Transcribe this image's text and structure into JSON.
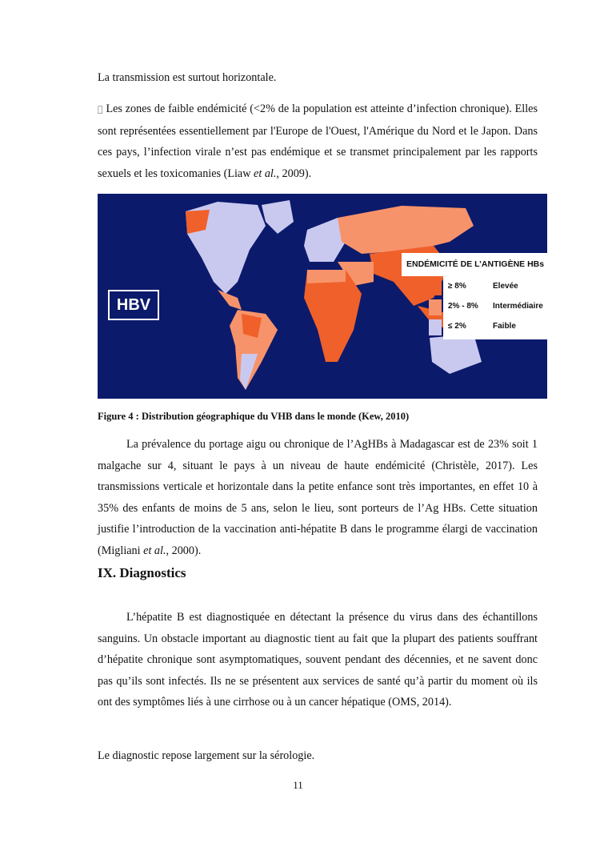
{
  "paragraphs": {
    "p1": "La transmission est surtout horizontale.",
    "p2_bullet": "",
    "p2": " Les zones de faible endémicité (<2% de la population est atteinte d’infection chronique). Elles sont représentées essentiellement par l'Europe de l'Ouest, l'Amérique du Nord et le Japon. Dans ces pays, l’infection virale n’est pas endémique et se transmet principalement par les rapports sexuels et les toxicomanies (Liaw ",
    "p2_italic": "et al.",
    "p2_end": ", 2009).",
    "p3": "La prévalence du portage aigu ou chronique de l’AgHBs à Madagascar est de 23% soit 1 malgache sur 4, situant le pays à un niveau de haute endémicité (Christèle, 2017). Les transmissions verticale et horizontale dans la petite enfance sont très importantes, en effet 10 à 35% des enfants de moins de 5 ans, selon le lieu, sont porteurs de l’Ag HBs. Cette situation justifie l’introduction de la vaccination anti-hépatite B dans le programme élargi de vaccination (Migliani ",
    "p3_italic": "et al.",
    "p3_end": ", 2000).",
    "p4": "L’hépatite B est diagnostiquée en détectant la présence du virus dans des échantillons sanguins. Un obstacle important au diagnostic tient au fait que la plupart des patients souffrant d’hépatite chronique sont asymptomatiques, souvent pendant des décennies, et ne savent donc pas qu’ils sont infectés. Ils ne se présentent aux services de santé qu’à partir du moment où ils ont des symptômes liés à une cirrhose ou à un cancer hépatique (OMS, 2014).",
    "p5": "Le diagnostic repose largement sur la sérologie."
  },
  "figure": {
    "map_label": "HBV",
    "legend_title": "ENDÉMICITÉ DE L’ANTIGÈNE HBs",
    "legend": [
      {
        "range": "≥ 8%",
        "label": "Elevée",
        "color": "#f0602a"
      },
      {
        "range": "2% - 8%",
        "label": "Intermédiaire",
        "color": "#f7936a"
      },
      {
        "range": "≤ 2%",
        "label": "Faible",
        "color": "#c9c9f0"
      }
    ],
    "background_color": "#0c1a6b",
    "caption": "Figure 4 : Distribution géographique du VHB dans le monde (Kew, 2010)"
  },
  "heading": "IX. Diagnostics",
  "page_number": "11"
}
